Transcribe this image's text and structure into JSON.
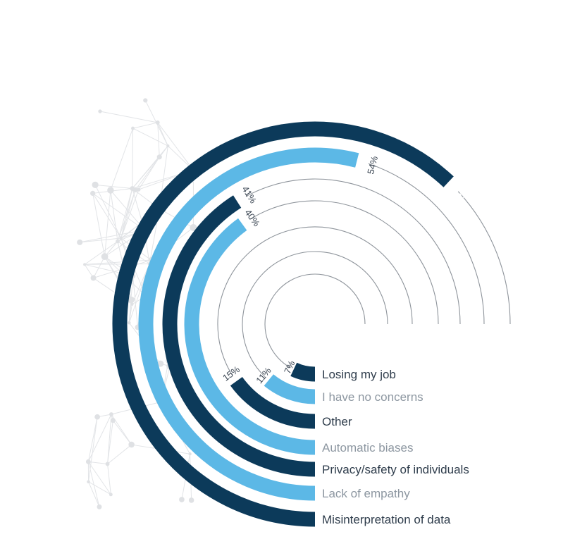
{
  "chart_data": {
    "type": "radial-bar",
    "max_value": 75,
    "series": [
      {
        "name": "Misinterpretation of data",
        "value": 62,
        "label": "62%",
        "color": "#0c3a5a",
        "label_color": "#2f3d4c"
      },
      {
        "name": "Lack of empathy",
        "value": 54,
        "label": "54%",
        "color": "#5cb8e6",
        "label_color": "#8d97a1"
      },
      {
        "name": "Privacy/safety of individuals",
        "value": 41,
        "label": "41%",
        "color": "#0c3a5a",
        "label_color": "#2f3d4c"
      },
      {
        "name": "Automatic biases",
        "value": 40,
        "label": "40%",
        "color": "#5cb8e6",
        "label_color": "#8d97a1"
      },
      {
        "name": "Other",
        "value": 15,
        "label": "15%",
        "color": "#0c3a5a",
        "label_color": "#2f3d4c"
      },
      {
        "name": "I have no concerns",
        "value": 11,
        "label": "11%",
        "color": "#5cb8e6",
        "label_color": "#8d97a1"
      },
      {
        "name": "Losing my job",
        "value": 7,
        "label": "7%",
        "color": "#0c3a5a",
        "label_color": "#2f3d4c"
      }
    ],
    "track_color": "#8e949b",
    "background": "network-pattern"
  }
}
